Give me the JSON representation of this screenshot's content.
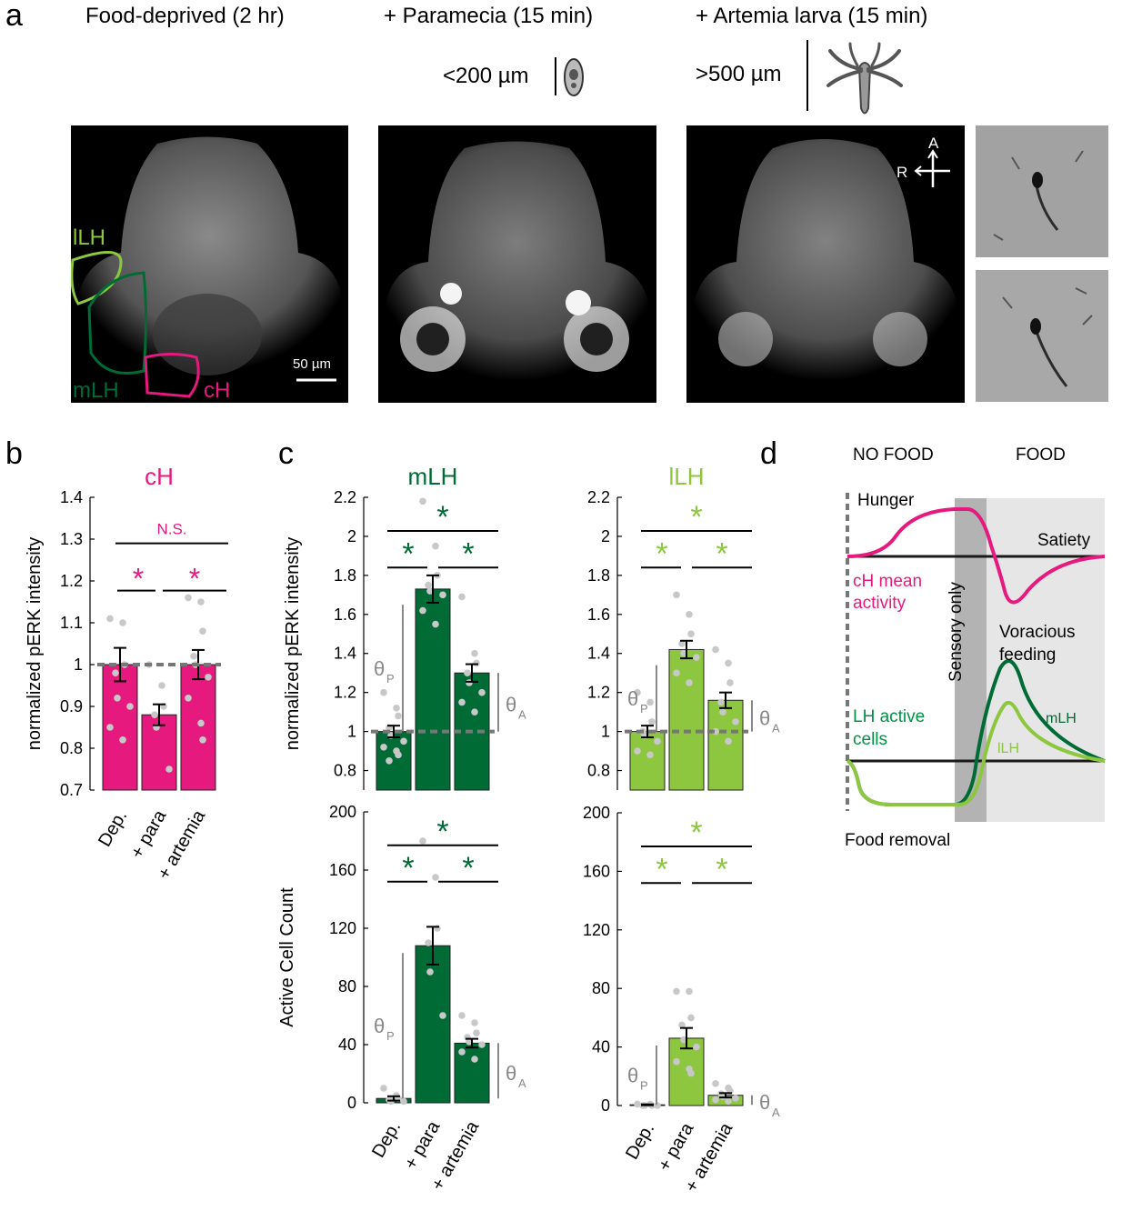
{
  "panel_a": {
    "letter": "a",
    "titles": [
      "Food-deprived (2 hr)",
      "+ Paramecia (15 min)",
      "+ Artemia larva (15 min)"
    ],
    "size_para": "<200 µm",
    "size_artemia": ">500 µm",
    "region_labels": {
      "llh": "lLH",
      "mlh": "mLH",
      "ch": "cH"
    },
    "scale_bar": "50 µm",
    "axis_a": "A",
    "axis_r": "R"
  },
  "panel_b": {
    "letter": "b"
  },
  "panel_c": {
    "letter": "c"
  },
  "panel_d": {
    "letter": "d",
    "no_food": "NO FOOD",
    "food": "FOOD",
    "hunger": "Hunger",
    "satiety": "Satiety",
    "ch_mean_activity_1": "cH mean",
    "ch_mean_activity_2": "activity",
    "sensory_only": "Sensory only",
    "voracious_1": "Voracious",
    "voracious_2": "feeding",
    "lh_active_1": "LH active",
    "lh_active_2": "cells",
    "mlh": "mLH",
    "llh": "lLH",
    "food_removal": "Food removal"
  },
  "significance": {
    "star": "*",
    "ns": "N.S.",
    "theta": "θ",
    "theta_p": "P",
    "theta_a": "A"
  },
  "colors": {
    "magenta": "#e6197f",
    "dark_green": "#006b35",
    "light_green": "#8dc63f",
    "grey_dot": "#c8c8c8",
    "dash": "#777777"
  },
  "chart_data": [
    {
      "id": "ch",
      "type": "bar",
      "title": "cH",
      "ylabel": "normalized pERK intensity",
      "categories": [
        "Dep.",
        "+ para",
        "+ artemia"
      ],
      "values": [
        1.0,
        0.88,
        1.0
      ],
      "errors": [
        0.04,
        0.025,
        0.035
      ],
      "ylim": [
        0.7,
        1.4
      ],
      "yticks": [
        "0.7",
        "0.8",
        "0.9",
        "1",
        "1.1",
        "1.2",
        "1.3",
        "1.4"
      ],
      "baseline": 1.0,
      "points": [
        [
          1.11,
          1.1,
          1.0,
          0.98,
          0.92,
          0.9,
          0.85,
          0.82
        ],
        [
          1.0,
          0.95,
          0.9,
          0.88,
          0.85,
          0.75
        ],
        [
          1.16,
          1.15,
          1.08,
          1.02,
          1.0,
          0.97,
          0.92,
          0.86,
          0.82
        ]
      ]
    },
    {
      "id": "mlh_int",
      "type": "bar",
      "title": "mLH",
      "ylabel": "normalized pERK intensity",
      "categories": [
        "Dep.",
        "+ para",
        "+ artemia"
      ],
      "values": [
        1.0,
        1.73,
        1.3
      ],
      "errors": [
        0.03,
        0.07,
        0.045
      ],
      "ylim": [
        0.7,
        2.2
      ],
      "yticks": [
        "0.8",
        "1",
        "1.2",
        "1.4",
        "1.6",
        "1.8",
        "2",
        "2.2"
      ],
      "baseline": 1.0,
      "points": [
        [
          1.2,
          1.12,
          1.08,
          1.02,
          0.98,
          0.95,
          0.92,
          0.9,
          0.88,
          0.85
        ],
        [
          2.18,
          1.95,
          1.8,
          1.75,
          1.72,
          1.7,
          1.62,
          1.55
        ],
        [
          1.69,
          1.4,
          1.35,
          1.3,
          1.25,
          1.2,
          1.15,
          1.1
        ]
      ]
    },
    {
      "id": "llh_int",
      "type": "bar",
      "title": "lLH",
      "categories": [
        "Dep.",
        "+ para",
        "+ artemia"
      ],
      "values": [
        1.0,
        1.42,
        1.16
      ],
      "errors": [
        0.03,
        0.045,
        0.04
      ],
      "ylim": [
        0.7,
        2.2
      ],
      "yticks": [
        "0.8",
        "1",
        "1.2",
        "1.4",
        "1.6",
        "1.8",
        "2",
        "2.2"
      ],
      "baseline": 1.0,
      "points": [
        [
          1.2,
          1.15,
          1.05,
          1.0,
          0.98,
          0.95,
          0.9,
          0.88
        ],
        [
          1.7,
          1.6,
          1.5,
          1.45,
          1.4,
          1.38,
          1.3,
          1.25
        ],
        [
          1.42,
          1.35,
          1.25,
          1.15,
          1.1,
          1.05,
          1.0,
          0.95
        ]
      ]
    },
    {
      "id": "mlh_count",
      "type": "bar",
      "ylabel": "Active Cell Count",
      "categories": [
        "Dep.",
        "+ para",
        "+ artemia"
      ],
      "values": [
        3,
        108,
        41
      ],
      "errors": [
        1.5,
        13,
        3
      ],
      "ylim": [
        0,
        200
      ],
      "yticks": [
        "0",
        "40",
        "80",
        "120",
        "160",
        "200"
      ],
      "points": [
        [
          10,
          5,
          3,
          2,
          1,
          1
        ],
        [
          180,
          155,
          120,
          110,
          90,
          60
        ],
        [
          60,
          55,
          48,
          45,
          42,
          40,
          35,
          30
        ]
      ]
    },
    {
      "id": "llh_count",
      "type": "bar",
      "categories": [
        "Dep.",
        "+ para",
        "+ artemia"
      ],
      "values": [
        0.5,
        46,
        7
      ],
      "errors": [
        0.3,
        7,
        1.5
      ],
      "ylim": [
        0,
        200
      ],
      "yticks": [
        "0",
        "40",
        "80",
        "120",
        "160",
        "200"
      ],
      "points": [
        [
          1,
          1,
          0,
          0,
          0,
          0
        ],
        [
          78,
          78,
          60,
          55,
          45,
          40,
          30,
          25,
          22
        ],
        [
          15,
          12,
          10,
          8,
          6,
          5,
          4,
          3
        ]
      ]
    }
  ]
}
